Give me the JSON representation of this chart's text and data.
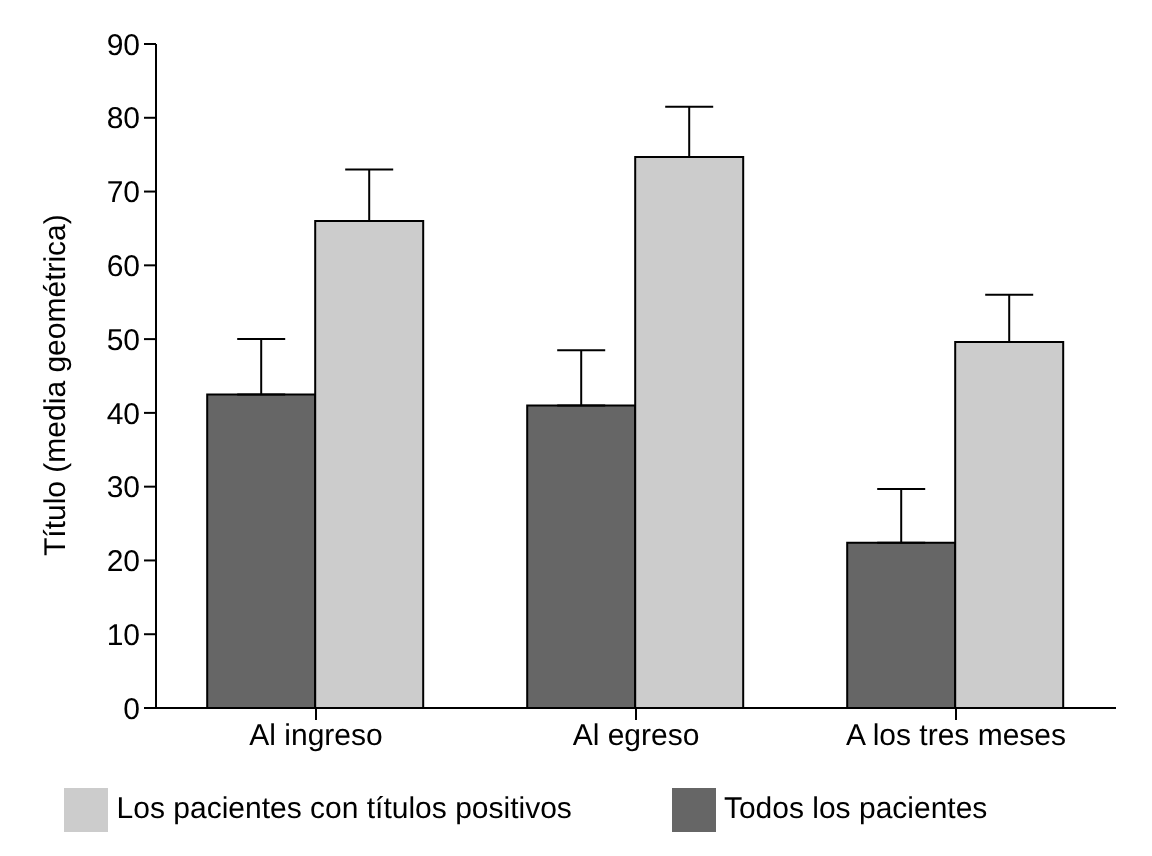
{
  "chart_data": {
    "type": "bar",
    "ylabel": "Título (media geométrica)",
    "categories": [
      "Al ingreso",
      "Al egreso",
      "A los tres meses"
    ],
    "series": [
      {
        "name": "Todos los pacientes",
        "color": "#666666",
        "values": [
          42.5,
          41,
          22.4
        ],
        "errors": [
          [
            42.5,
            50
          ],
          [
            41,
            48.5
          ],
          [
            22.4,
            29.7
          ]
        ]
      },
      {
        "name": "Los pacientes con títulos positivos",
        "color": "#cccccc",
        "values": [
          66,
          74.7,
          49.6
        ],
        "errors": [
          [
            66,
            73
          ],
          [
            74.7,
            81.5
          ],
          [
            49.6,
            56
          ]
        ]
      }
    ],
    "ylim": [
      0,
      90
    ],
    "yticks": [
      0,
      10,
      20,
      30,
      40,
      50,
      60,
      70,
      80,
      90
    ],
    "grid": false,
    "legend": "bottom"
  }
}
